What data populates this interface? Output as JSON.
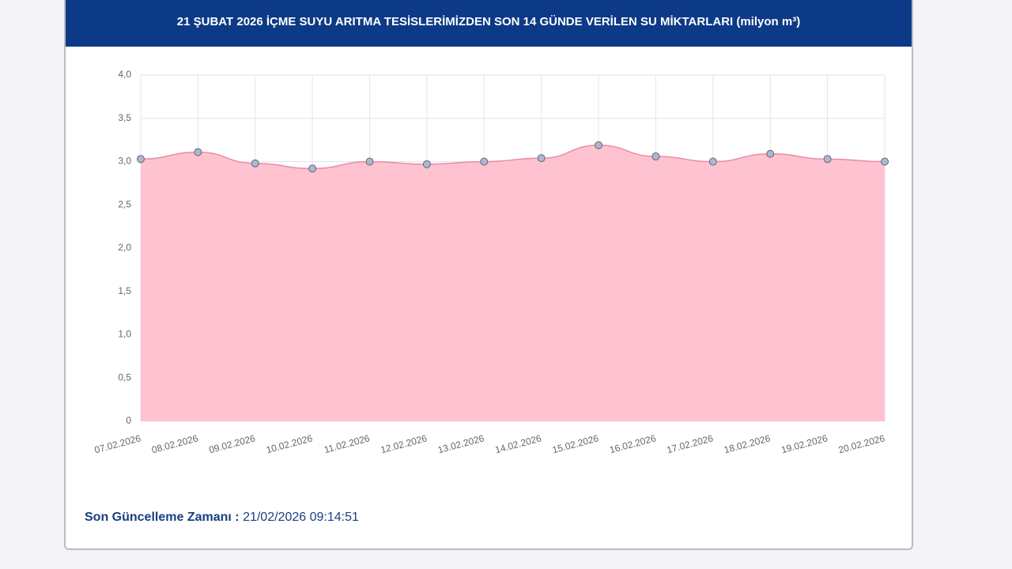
{
  "chart_data": {
    "type": "area",
    "title": "21 ŞUBAT 2026 İÇME SUYU ARITMA TESİSLERİMİZDEN SON 14 GÜNDE VERİLEN SU MİKTARLARI (milyon m³)",
    "categories": [
      "07.02.2026",
      "08.02.2026",
      "09.02.2026",
      "10.02.2026",
      "11.02.2026",
      "12.02.2026",
      "13.02.2026",
      "14.02.2026",
      "15.02.2026",
      "16.02.2026",
      "17.02.2026",
      "18.02.2026",
      "19.02.2026",
      "20.02.2026"
    ],
    "values": [
      3.03,
      3.11,
      2.98,
      2.92,
      3.0,
      2.97,
      3.0,
      3.04,
      3.19,
      3.06,
      3.0,
      3.09,
      3.03,
      3.0
    ],
    "color": "#e98ca3",
    "fill": "#ffc2d0",
    "marker_color": "#aeb6d6",
    "ylim": [
      0,
      4
    ],
    "yticks": [
      0,
      {
        "value": 0.5,
        "label": "0,5"
      },
      {
        "value": 1,
        "label": "1,0"
      },
      {
        "value": 1.5,
        "label": "1,5"
      },
      {
        "value": 2,
        "label": "2,0"
      },
      {
        "value": 2.5,
        "label": "2,5"
      },
      {
        "value": 3,
        "label": "3,0"
      },
      {
        "value": 3.5,
        "label": "3,5"
      },
      {
        "value": 4,
        "label": "4,0"
      }
    ],
    "grid": true
  },
  "footer": {
    "label": "Son Güncelleme Zamanı :",
    "value": "21/02/2026 09:14:51"
  }
}
